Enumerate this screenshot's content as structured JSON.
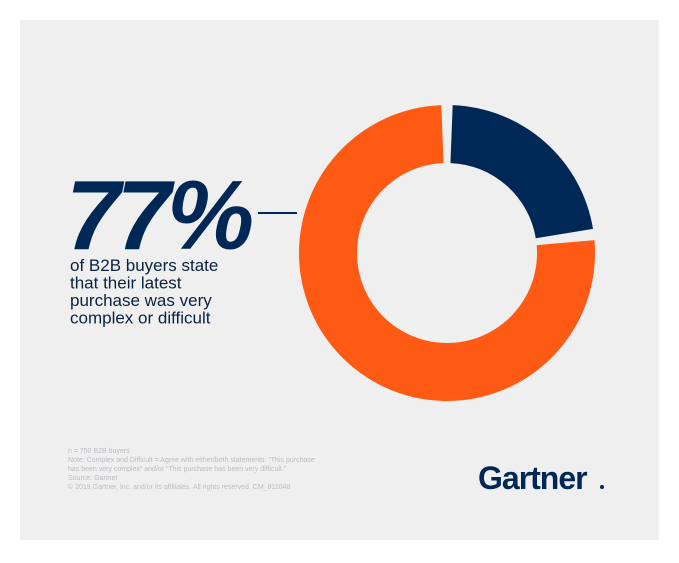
{
  "chart_data": {
    "type": "donut",
    "values": [
      23,
      77
    ],
    "value_labels": [
      null,
      "77%"
    ],
    "colors": [
      "#002856",
      "#ff5a14"
    ]
  },
  "caption": [
    "of B2B buyers state",
    "that their latest",
    "purchase was very",
    "complex or difficult"
  ],
  "footnotes": [
    "n = 750 B2B buyers",
    "Note: Complex and Difficult = Agree with either/both statements: “This purchase",
    "has been very complex” and/or “This purchase has been very difficult.”",
    "Source: Gartner",
    "© 2019 Gartner, Inc. and/or its affiliates. All rights reserved. CM_811048"
  ],
  "logo": "Gartner"
}
